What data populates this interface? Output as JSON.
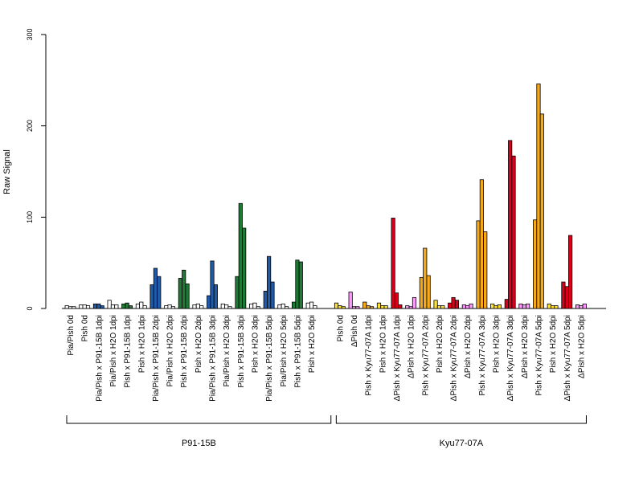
{
  "chart_data": {
    "type": "bar",
    "ylabel": "Raw Signal",
    "ylim": [
      0,
      300
    ],
    "yticks": [
      0,
      100,
      200,
      300
    ],
    "bar_edge_color": "#000000",
    "groups": [
      {
        "label": "P91-15B",
        "first_category": 0,
        "last_category": 18
      },
      {
        "label": "Kyu77-07A",
        "first_category": 19,
        "last_category": 36
      }
    ],
    "categories": [
      {
        "label": "Pia/Pish 0d",
        "color": "#ffffff",
        "values": [
          3,
          2,
          2
        ]
      },
      {
        "label": "Pish 0d",
        "color": "#ffffff",
        "values": [
          4,
          4,
          3
        ]
      },
      {
        "label": "Pia/Pish x P91-15B 1dpi",
        "color": "#1f5ba8",
        "values": [
          5,
          5,
          3
        ]
      },
      {
        "label": "Pia/Pish x H2O 1dpi",
        "color": "#ffffff",
        "values": [
          9,
          4,
          4
        ]
      },
      {
        "label": "Pish x P91-15B 1dpi",
        "color": "#1e7a34",
        "values": [
          5,
          6,
          3
        ]
      },
      {
        "label": "Pish x H2O 1dpi",
        "color": "#ffffff",
        "values": [
          5,
          7,
          3
        ]
      },
      {
        "label": "Pia/Pish x P91-15B 2dpi",
        "color": "#1f5ba8",
        "values": [
          26,
          44,
          35
        ]
      },
      {
        "label": "Pia/Pish x H2O 2dpi",
        "color": "#ffffff",
        "values": [
          3,
          4,
          2
        ]
      },
      {
        "label": "Pish x P91-15B 2dpi",
        "color": "#1e7a34",
        "values": [
          33,
          42,
          27
        ]
      },
      {
        "label": "Pish x H2O 2dpi",
        "color": "#ffffff",
        "values": [
          4,
          5,
          3
        ]
      },
      {
        "label": "Pia/Pish x P91-15B 3dpi",
        "color": "#1f5ba8",
        "values": [
          14,
          52,
          26
        ]
      },
      {
        "label": "Pia/Pish x H2O 3dpi",
        "color": "#ffffff",
        "values": [
          5,
          4,
          2
        ]
      },
      {
        "label": "Pish x P91-15B 3dpi",
        "color": "#1e7a34",
        "values": [
          35,
          115,
          88
        ]
      },
      {
        "label": "Pish x H2O 3dpi",
        "color": "#ffffff",
        "values": [
          5,
          6,
          2
        ]
      },
      {
        "label": "Pia/Pish x P91-15B 5dpi",
        "color": "#1f5ba8",
        "values": [
          19,
          57,
          29
        ]
      },
      {
        "label": "Pia/Pish x H2O 5dpi",
        "color": "#ffffff",
        "values": [
          4,
          5,
          2
        ]
      },
      {
        "label": "Pish x P91-15B 5dpi",
        "color": "#1e7a34",
        "values": [
          7,
          53,
          51
        ]
      },
      {
        "label": "Pish x H2O 5dpi",
        "color": "#ffffff",
        "values": [
          6,
          7,
          3
        ]
      },
      {
        "label": "",
        "color": "#ffffff",
        "values": [
          0,
          0,
          0
        ]
      },
      {
        "label": "Pish 0d",
        "color": "#ffe033",
        "values": [
          6,
          3,
          2
        ]
      },
      {
        "label": "ΔPish 0d",
        "color": "#ff99ff",
        "values": [
          18,
          2,
          2
        ]
      },
      {
        "label": "Pish x Kyu77-07A 1dpi",
        "color": "#f5a81a",
        "values": [
          7,
          3,
          2
        ]
      },
      {
        "label": "Pish x H2O 1dpi",
        "color": "#ffe033",
        "values": [
          6,
          3,
          3
        ]
      },
      {
        "label": "ΔPish x Kyu77-07A 1dpi",
        "color": "#d9001b",
        "values": [
          99,
          17,
          4
        ]
      },
      {
        "label": "ΔPish x H2O 1dpi",
        "color": "#ff99ff",
        "values": [
          3,
          2,
          12
        ]
      },
      {
        "label": "Pish x Kyu77-07A 2dpi",
        "color": "#f5a81a",
        "values": [
          34,
          66,
          36
        ]
      },
      {
        "label": "Pish x H2O 2dpi",
        "color": "#ffe033",
        "values": [
          9,
          3,
          3
        ]
      },
      {
        "label": "ΔPish x Kyu77-07A 2dpi",
        "color": "#d9001b",
        "values": [
          6,
          12,
          9
        ]
      },
      {
        "label": "ΔPish x H2O 2dpi",
        "color": "#ff99ff",
        "values": [
          4,
          3,
          5
        ]
      },
      {
        "label": "Pish x Kyu77-07A 3dpi",
        "color": "#f5a81a",
        "values": [
          96,
          141,
          84
        ]
      },
      {
        "label": "Pish x H2O 3dpi",
        "color": "#ffe033",
        "values": [
          5,
          3,
          4
        ]
      },
      {
        "label": "ΔPish x Kyu77-07A 3dpi",
        "color": "#d9001b",
        "values": [
          10,
          184,
          167
        ]
      },
      {
        "label": "ΔPish x H2O 3dpi",
        "color": "#ff99ff",
        "values": [
          5,
          4,
          5
        ]
      },
      {
        "label": "Pish x Kyu77-07A 5dpi",
        "color": "#f5a81a",
        "values": [
          97,
          246,
          213
        ]
      },
      {
        "label": "Pish x H2O 5dpi",
        "color": "#ffe033",
        "values": [
          5,
          3,
          3
        ]
      },
      {
        "label": "ΔPish x Kyu77-07A 5dpi",
        "color": "#d9001b",
        "values": [
          29,
          24,
          80
        ]
      },
      {
        "label": "ΔPish x H2O 5dpi",
        "color": "#ff99ff",
        "values": [
          4,
          3,
          5
        ]
      }
    ]
  }
}
